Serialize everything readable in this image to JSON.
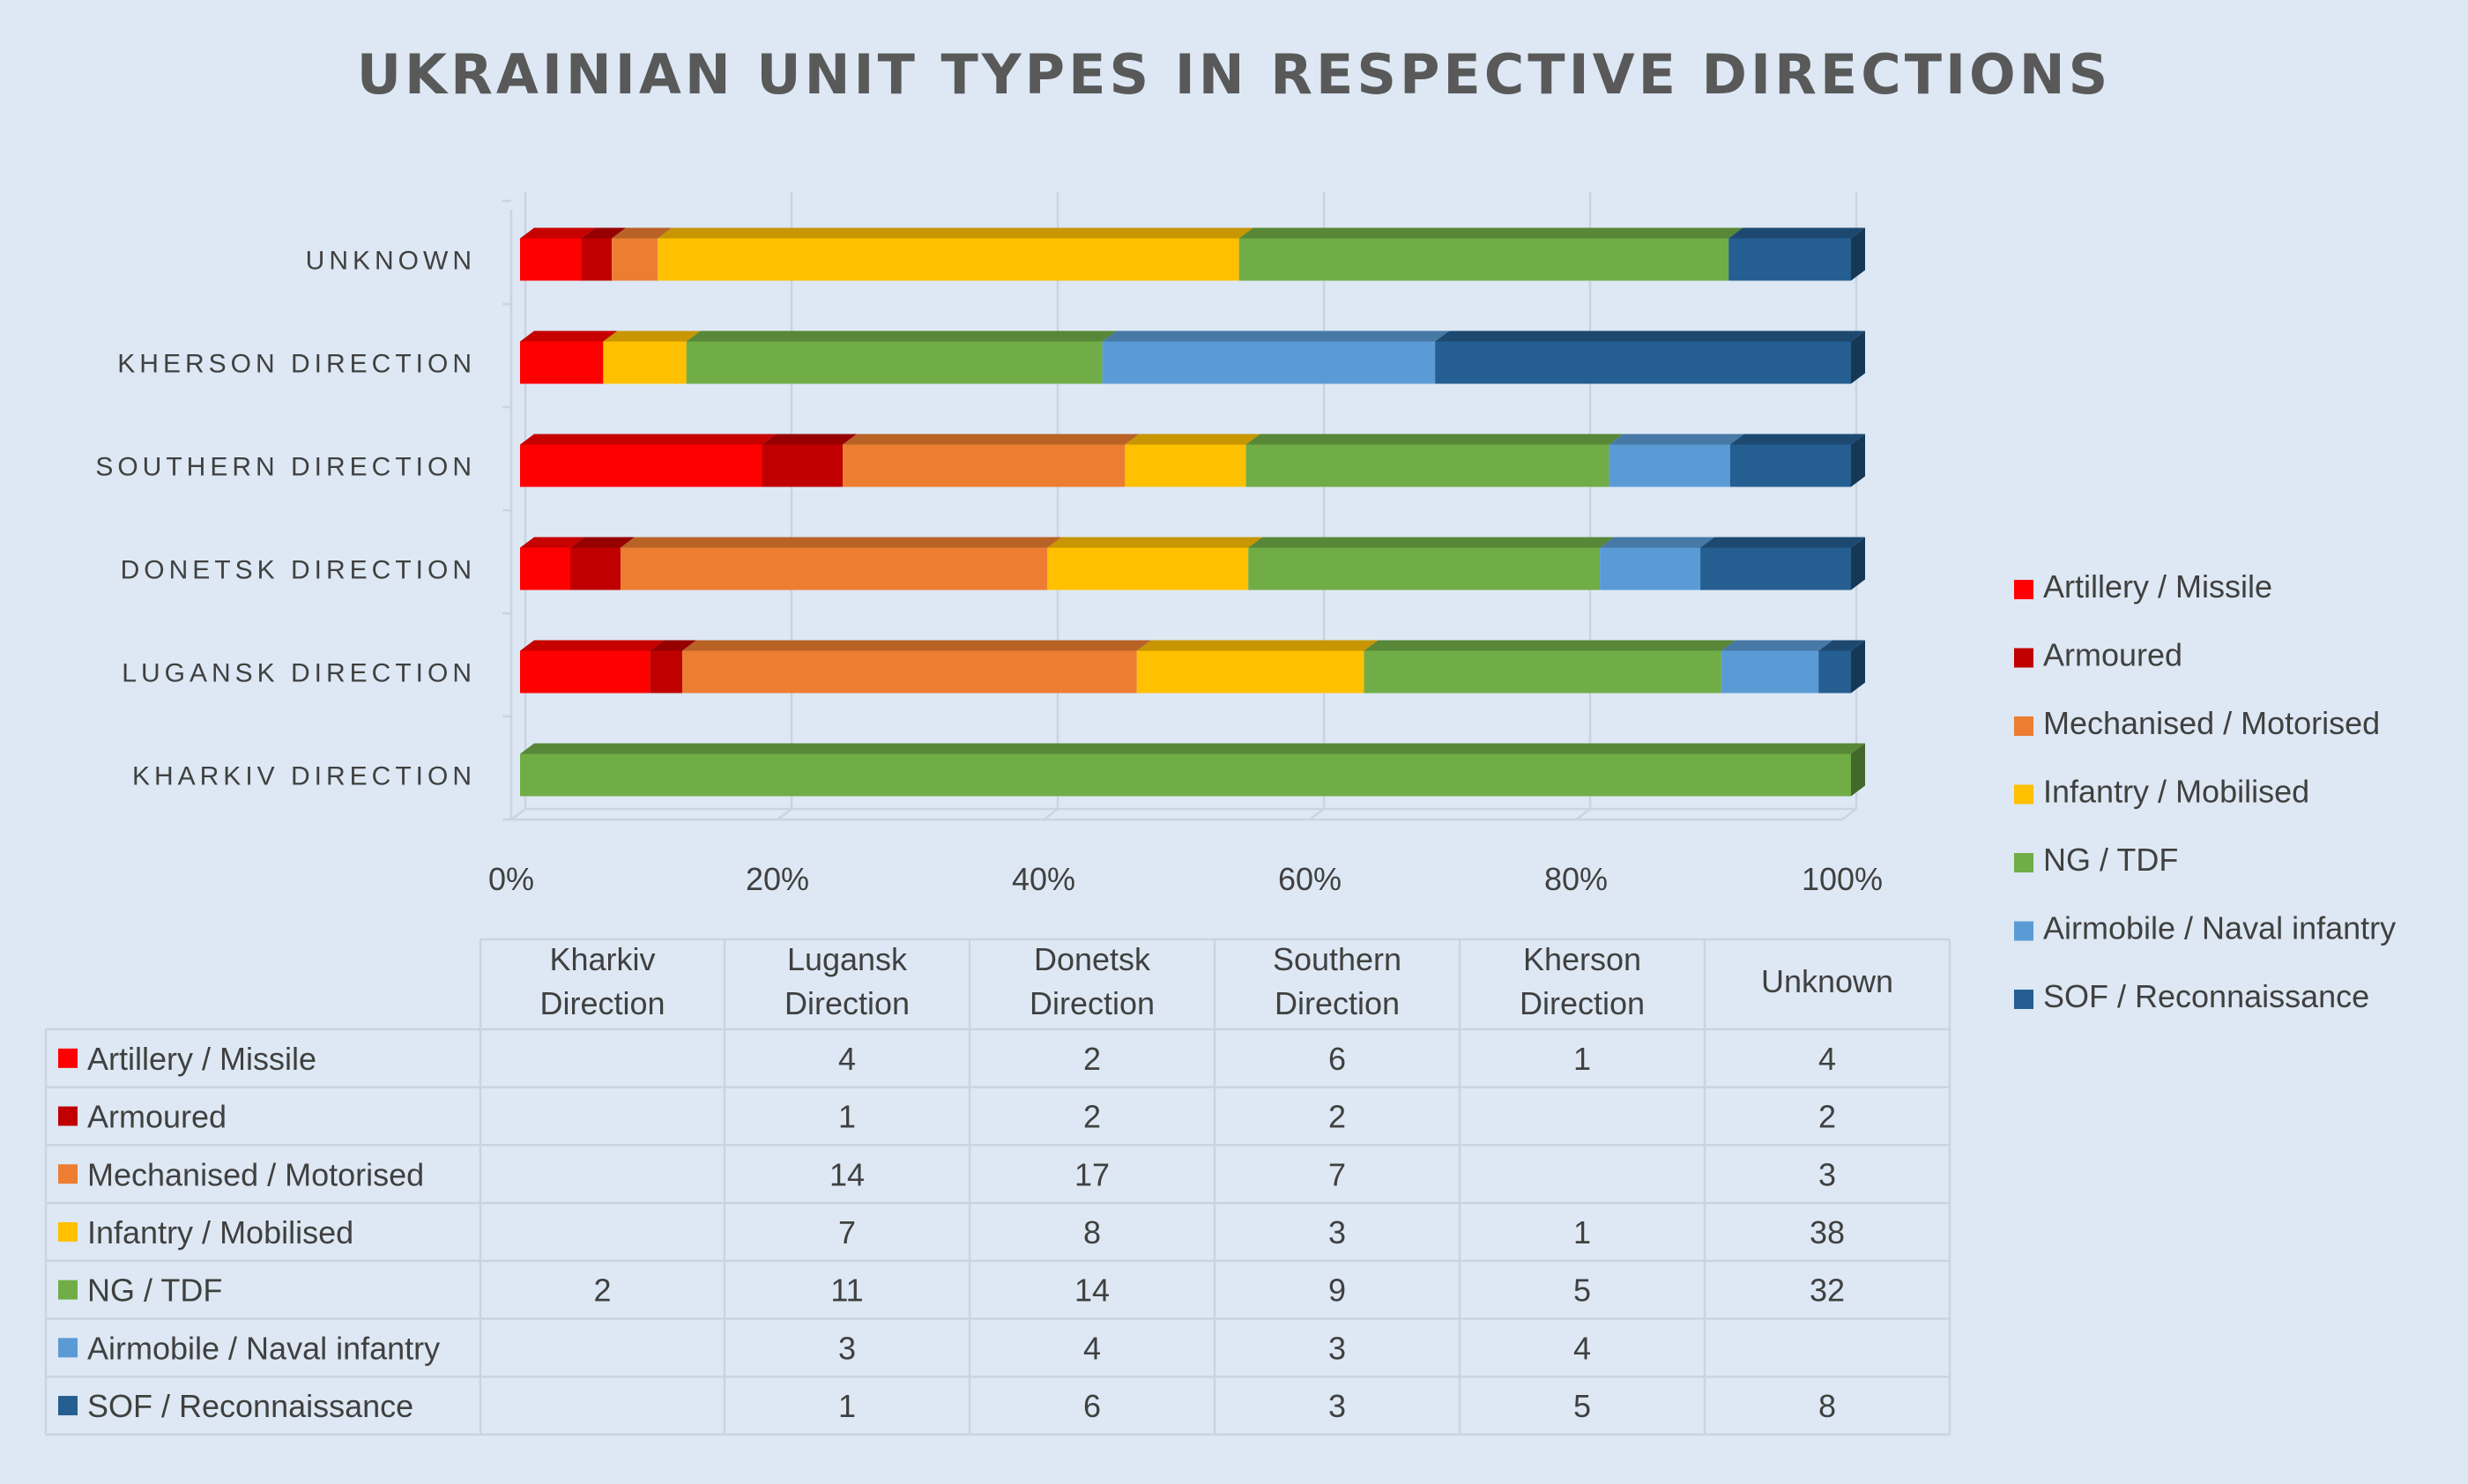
{
  "chart_data": {
    "type": "bar",
    "orientation": "horizontal",
    "stacked": "percent",
    "title": "UKRAINIAN UNIT TYPES IN RESPECTIVE DIRECTIONS",
    "categories": [
      "Kharkiv Direction",
      "Lugansk Direction",
      "Donetsk Direction",
      "Southern Direction",
      "Kherson Direction",
      "Unknown"
    ],
    "category_axis_labels": [
      "KHARKIV DIRECTION",
      "LUGANSK DIRECTION",
      "DONETSK DIRECTION",
      "SOUTHERN DIRECTION",
      "KHERSON DIRECTION",
      "UNKNOWN"
    ],
    "x_ticks": [
      "0%",
      "20%",
      "40%",
      "60%",
      "80%",
      "100%"
    ],
    "xlim": [
      0,
      100
    ],
    "grid": true,
    "legend_position": "right",
    "series": [
      {
        "name": "Artillery / Missile",
        "color": "#ff0000",
        "values": [
          null,
          4,
          2,
          6,
          1,
          4
        ]
      },
      {
        "name": "Armoured",
        "color": "#c00000",
        "values": [
          null,
          1,
          2,
          2,
          null,
          2
        ]
      },
      {
        "name": "Mechanised / Motorised",
        "color": "#ed7d31",
        "values": [
          null,
          14,
          17,
          7,
          null,
          3
        ]
      },
      {
        "name": "Infantry / Mobilised",
        "color": "#ffc000",
        "values": [
          null,
          7,
          8,
          3,
          1,
          38
        ]
      },
      {
        "name": "NG / TDF",
        "color": "#70ad47",
        "values": [
          2,
          11,
          14,
          9,
          5,
          32
        ]
      },
      {
        "name": "Airmobile / Naval infantry",
        "color": "#5b9bd5",
        "values": [
          null,
          3,
          4,
          3,
          4,
          null
        ]
      },
      {
        "name": "SOF / Reconnaissance",
        "color": "#255e91",
        "values": [
          null,
          1,
          6,
          3,
          5,
          8
        ]
      }
    ],
    "table": {
      "headers": [
        "Kharkiv Direction",
        "Lugansk Direction",
        "Donetsk Direction",
        "Southern Direction",
        "Kherson Direction",
        "Unknown"
      ],
      "rows": [
        {
          "label": "Artillery / Missile",
          "cells": [
            "",
            "4",
            "2",
            "6",
            "1",
            "4"
          ]
        },
        {
          "label": "Armoured",
          "cells": [
            "",
            "1",
            "2",
            "2",
            "",
            "2"
          ]
        },
        {
          "label": "Mechanised / Motorised",
          "cells": [
            "",
            "14",
            "17",
            "7",
            "",
            "3"
          ]
        },
        {
          "label": "Infantry / Mobilised",
          "cells": [
            "",
            "7",
            "8",
            "3",
            "1",
            "38"
          ]
        },
        {
          "label": "NG / TDF",
          "cells": [
            "2",
            "11",
            "14",
            "9",
            "5",
            "32"
          ]
        },
        {
          "label": "Airmobile / Naval infantry",
          "cells": [
            "",
            "3",
            "4",
            "3",
            "4",
            ""
          ]
        },
        {
          "label": "SOF / Reconnaissance",
          "cells": [
            "",
            "1",
            "6",
            "3",
            "5",
            "8"
          ]
        }
      ]
    }
  }
}
